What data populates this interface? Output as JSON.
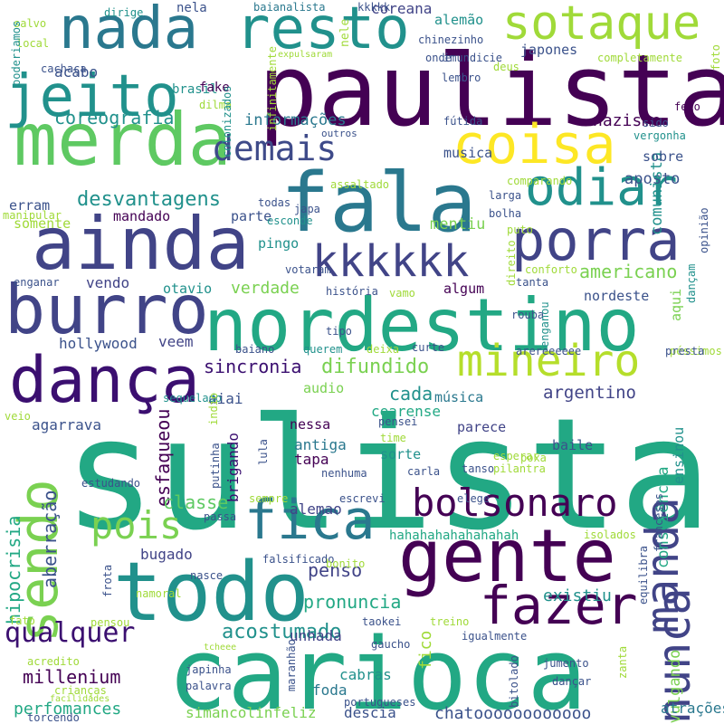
{
  "palette": {
    "dark_purple": "#440154",
    "indigo": "#414487",
    "blue": "#2a788e",
    "teal": "#21918c",
    "green_teal": "#22a884",
    "green": "#7ad151",
    "light_green": "#a0da39",
    "yellow": "#fde725"
  },
  "words": [
    {
      "text": "sulista",
      "color": "#22a884"
    },
    {
      "text": "paulista",
      "color": "#440154"
    },
    {
      "text": "carioca",
      "color": "#22a884"
    },
    {
      "text": "fala",
      "color": "#2a788e"
    },
    {
      "text": "gente",
      "color": "#440154"
    },
    {
      "text": "todo",
      "color": "#21918c"
    },
    {
      "text": "nordestino",
      "color": "#22a884"
    },
    {
      "text": "ainda",
      "color": "#414487"
    },
    {
      "text": "merda",
      "color": "#5ec962"
    },
    {
      "text": "burro",
      "color": "#414487"
    },
    {
      "text": "dança",
      "color": "#3b0f70"
    },
    {
      "text": "nada",
      "color": "#2a788e"
    },
    {
      "text": "resto",
      "color": "#21918c"
    },
    {
      "text": "jeito",
      "color": "#21918c"
    },
    {
      "text": "porra",
      "color": "#414487"
    },
    {
      "text": "coisa",
      "color": "#fde725"
    },
    {
      "text": "odiar",
      "color": "#21918c"
    },
    {
      "text": "sotaque",
      "color": "#a0da39"
    },
    {
      "text": "fica",
      "color": "#2a788e"
    },
    {
      "text": "fazer",
      "color": "#440154"
    },
    {
      "text": "sendo",
      "color": "#7ad151"
    },
    {
      "text": "manda",
      "color": "#414487"
    },
    {
      "text": "nunca",
      "color": "#414487"
    },
    {
      "text": "kkkkkk",
      "color": "#414487"
    },
    {
      "text": "mineiro",
      "color": "#b5de2b"
    },
    {
      "text": "bolsonaro",
      "color": "#440154"
    },
    {
      "text": "pois",
      "color": "#7ad151"
    },
    {
      "text": "demais",
      "color": "#3e4a89"
    },
    {
      "text": "qualquer",
      "color": "#3b0f70"
    },
    {
      "text": "desvantagens",
      "color": "#21918c"
    },
    {
      "text": "difundido",
      "color": "#7ad151"
    },
    {
      "text": "americano",
      "color": "#7ad151"
    },
    {
      "text": "acostumado",
      "color": "#21918c"
    },
    {
      "text": "coreografia",
      "color": "#21918c"
    },
    {
      "text": "millenium",
      "color": "#440154"
    },
    {
      "text": "pronuncia",
      "color": "#22a884"
    },
    {
      "text": "sincronia",
      "color": "#3b0f70"
    },
    {
      "text": "verdade",
      "color": "#7ad151"
    },
    {
      "text": "perfomances",
      "color": "#22a884"
    },
    {
      "text": "argentino",
      "color": "#414487"
    },
    {
      "text": "hipocrisia",
      "color": "#22a884"
    },
    {
      "text": "penso",
      "color": "#414487"
    },
    {
      "text": "aberração",
      "color": "#3b528b"
    },
    {
      "text": "esfaqueou",
      "color": "#440154"
    },
    {
      "text": "classe",
      "color": "#5ec962"
    },
    {
      "text": "existiu",
      "color": "#21918c"
    },
    {
      "text": "cada",
      "color": "#21918c"
    },
    {
      "text": "nazismo",
      "color": "#440154"
    },
    {
      "text": "aposto",
      "color": "#3b528b"
    },
    {
      "text": "comunista",
      "color": "#21918c"
    },
    {
      "text": "consciência",
      "color": "#22a884"
    },
    {
      "text": "divulgando",
      "color": "#7ad151"
    },
    {
      "text": "simancolinfeliz",
      "color": "#7ad151"
    },
    {
      "text": "chatoooooooooooo",
      "color": "#3b528b"
    },
    {
      "text": "informações",
      "color": "#2a788e"
    },
    {
      "text": "mentiu",
      "color": "#7ad151"
    },
    {
      "text": "hollywood",
      "color": "#3b528b"
    },
    {
      "text": "veem",
      "color": "#414487"
    },
    {
      "text": "vendo",
      "color": "#414487"
    },
    {
      "text": "agarrava",
      "color": "#3b528b"
    },
    {
      "text": "aiai",
      "color": "#3b528b"
    },
    {
      "text": "cearense",
      "color": "#22a884"
    },
    {
      "text": "brigando",
      "color": "#3b0f70"
    },
    {
      "text": "alemao",
      "color": "#414487"
    },
    {
      "text": "bugado",
      "color": "#414487"
    },
    {
      "text": "unhada",
      "color": "#414487"
    },
    {
      "text": "foda",
      "color": "#2a788e"
    },
    {
      "text": "cabras",
      "color": "#21918c"
    },
    {
      "text": "fico",
      "color": "#a0da39"
    },
    {
      "text": "atrações",
      "color": "#2a788e"
    },
    {
      "text": "descia",
      "color": "#3b528b"
    },
    {
      "text": "acabo",
      "color": "#3b528b"
    },
    {
      "text": "nela",
      "color": "#3b528b"
    },
    {
      "text": "brasil",
      "color": "#21918c"
    },
    {
      "text": "fake",
      "color": "#440154"
    },
    {
      "text": "coreana",
      "color": "#414487"
    },
    {
      "text": "alemão",
      "color": "#21918c"
    },
    {
      "text": "japones",
      "color": "#3b528b"
    },
    {
      "text": "erram",
      "color": "#3b528b"
    },
    {
      "text": "somente",
      "color": "#a0da39"
    },
    {
      "text": "mandado",
      "color": "#440154"
    },
    {
      "text": "parte",
      "color": "#3b528b"
    },
    {
      "text": "musica",
      "color": "#3b528b"
    },
    {
      "text": "sobre",
      "color": "#3b528b"
    },
    {
      "text": "pingo",
      "color": "#21918c"
    },
    {
      "text": "otavio",
      "color": "#21918c"
    },
    {
      "text": "nordeste",
      "color": "#3b528b"
    },
    {
      "text": "algum",
      "color": "#440154"
    },
    {
      "text": "audio",
      "color": "#7ad151"
    },
    {
      "text": "nessa",
      "color": "#440154"
    },
    {
      "text": "antiga",
      "color": "#2a788e"
    },
    {
      "text": "tapa",
      "color": "#440154"
    },
    {
      "text": "sorte",
      "color": "#21918c"
    },
    {
      "text": "parece",
      "color": "#414487"
    },
    {
      "text": "baile",
      "color": "#3b528b"
    },
    {
      "text": "música",
      "color": "#2a788e"
    },
    {
      "text": "ensinou",
      "color": "#21918c"
    },
    {
      "text": "aqui",
      "color": "#7ad151"
    },
    {
      "text": "hahahahahahahahah",
      "color": "#22a884"
    },
    {
      "text": "kkkkk",
      "color": "#3b528b"
    },
    {
      "text": "baianalista",
      "color": "#2a788e"
    },
    {
      "text": "dirige",
      "color": "#21918c"
    },
    {
      "text": "cachaça",
      "color": "#3b528b"
    },
    {
      "text": "salvo",
      "color": "#a0da39"
    },
    {
      "text": "local",
      "color": "#a0da39"
    },
    {
      "text": "poderiamos",
      "color": "#21918c"
    },
    {
      "text": "chinezinho",
      "color": "#3b528b"
    },
    {
      "text": "expulsaram",
      "color": "#a0da39"
    },
    {
      "text": "imundicie",
      "color": "#3b528b"
    },
    {
      "text": "infinitamente",
      "color": "#a0da39"
    },
    {
      "text": "nele",
      "color": "#a0da39"
    },
    {
      "text": "lembro",
      "color": "#3b528b"
    },
    {
      "text": "onde",
      "color": "#3b528b"
    },
    {
      "text": "deus",
      "color": "#a0da39"
    },
    {
      "text": "completamente",
      "color": "#a0da39"
    },
    {
      "text": "foto",
      "color": "#a0da39"
    },
    {
      "text": "feio",
      "color": "#440154"
    },
    {
      "text": "inclusivetorada",
      "color": "#a0da39"
    },
    {
      "text": "dilma",
      "color": "#a0da39"
    },
    {
      "text": "colonizados",
      "color": "#21918c"
    },
    {
      "text": "outros",
      "color": "#3b528b"
    },
    {
      "text": "fútida",
      "color": "#3b528b"
    },
    {
      "text": "sido",
      "color": "#3b528b"
    },
    {
      "text": "vergonha",
      "color": "#21918c"
    },
    {
      "text": "manipular",
      "color": "#a0da39"
    },
    {
      "text": "assaltado",
      "color": "#a0da39"
    },
    {
      "text": "comparando",
      "color": "#a0da39"
    },
    {
      "text": "todas",
      "color": "#3b528b"
    },
    {
      "text": "japa",
      "color": "#3b528b"
    },
    {
      "text": "larga",
      "color": "#3b528b"
    },
    {
      "text": "esconde",
      "color": "#21918c"
    },
    {
      "text": "bolha",
      "color": "#3b528b"
    },
    {
      "text": "puto",
      "color": "#a0da39"
    },
    {
      "text": "opinião",
      "color": "#3b528b"
    },
    {
      "text": "votaram",
      "color": "#3b528b"
    },
    {
      "text": "direito",
      "color": "#a0da39"
    },
    {
      "text": "conforto",
      "color": "#a0da39"
    },
    {
      "text": "tanta",
      "color": "#3b528b"
    },
    {
      "text": "enganar",
      "color": "#3b528b"
    },
    {
      "text": "história",
      "color": "#3b528b"
    },
    {
      "text": "vamo",
      "color": "#a0da39"
    },
    {
      "text": "dançam",
      "color": "#21918c"
    },
    {
      "text": "rouba",
      "color": "#3b528b"
    },
    {
      "text": "tipo",
      "color": "#3b528b"
    },
    {
      "text": "arereeeeee",
      "color": "#3b528b"
    },
    {
      "text": "péssimos",
      "color": "#a0da39"
    },
    {
      "text": "baiano",
      "color": "#3b528b"
    },
    {
      "text": "querem",
      "color": "#21918c"
    },
    {
      "text": "deixa",
      "color": "#a0da39"
    },
    {
      "text": "curte",
      "color": "#3b528b"
    },
    {
      "text": "enganou",
      "color": "#21918c"
    },
    {
      "text": "presta",
      "color": "#3b528b"
    },
    {
      "text": "sequelado",
      "color": "#21918c"
    },
    {
      "text": "veio",
      "color": "#a0da39"
    },
    {
      "text": "indio",
      "color": "#a0da39"
    },
    {
      "text": "pensei",
      "color": "#3b528b"
    },
    {
      "text": "time",
      "color": "#a0da39"
    },
    {
      "text": "esperar",
      "color": "#a0da39"
    },
    {
      "text": "poxa",
      "color": "#a0da39"
    },
    {
      "text": "tanso",
      "color": "#3b528b"
    },
    {
      "text": "pilantra",
      "color": "#a0da39"
    },
    {
      "text": "putinha",
      "color": "#3b528b"
    },
    {
      "text": "lula",
      "color": "#3b528b"
    },
    {
      "text": "nenhuma",
      "color": "#3b528b"
    },
    {
      "text": "carla",
      "color": "#3b528b"
    },
    {
      "text": "estudando",
      "color": "#3b528b"
    },
    {
      "text": "sempre",
      "color": "#a0da39"
    },
    {
      "text": "escrevi",
      "color": "#3b528b"
    },
    {
      "text": "elege",
      "color": "#3b528b"
    },
    {
      "text": "passa",
      "color": "#3b528b"
    },
    {
      "text": "isolados",
      "color": "#a0da39"
    },
    {
      "text": "franceses",
      "color": "#3b528b"
    },
    {
      "text": "equilibra",
      "color": "#3b528b"
    },
    {
      "text": "falsificado",
      "color": "#3b528b"
    },
    {
      "text": "bonito",
      "color": "#a0da39"
    },
    {
      "text": "frota",
      "color": "#3b528b"
    },
    {
      "text": "namoral",
      "color": "#a0da39"
    },
    {
      "text": "nasce",
      "color": "#3b528b"
    },
    {
      "text": "fato",
      "color": "#a0da39"
    },
    {
      "text": "pensou",
      "color": "#a0da39"
    },
    {
      "text": "tcheee",
      "color": "#a0da39"
    },
    {
      "text": "taokei",
      "color": "#3b528b"
    },
    {
      "text": "treino",
      "color": "#a0da39"
    },
    {
      "text": "gaucho",
      "color": "#3b528b"
    },
    {
      "text": "igualmente",
      "color": "#3b528b"
    },
    {
      "text": "zanta",
      "color": "#a0da39"
    },
    {
      "text": "acredito",
      "color": "#a0da39"
    },
    {
      "text": "crianças",
      "color": "#a0da39"
    },
    {
      "text": "japinha",
      "color": "#3b528b"
    },
    {
      "text": "maranhão",
      "color": "#3b528b"
    },
    {
      "text": "bitolado",
      "color": "#3b528b"
    },
    {
      "text": "jumento",
      "color": "#3b528b"
    },
    {
      "text": "dançar",
      "color": "#3b528b"
    },
    {
      "text": "palavra",
      "color": "#3b528b"
    },
    {
      "text": "portugueses",
      "color": "#3b528b"
    },
    {
      "text": "facilidades",
      "color": "#a0da39"
    },
    {
      "text": "torcendo",
      "color": "#3b528b"
    }
  ]
}
